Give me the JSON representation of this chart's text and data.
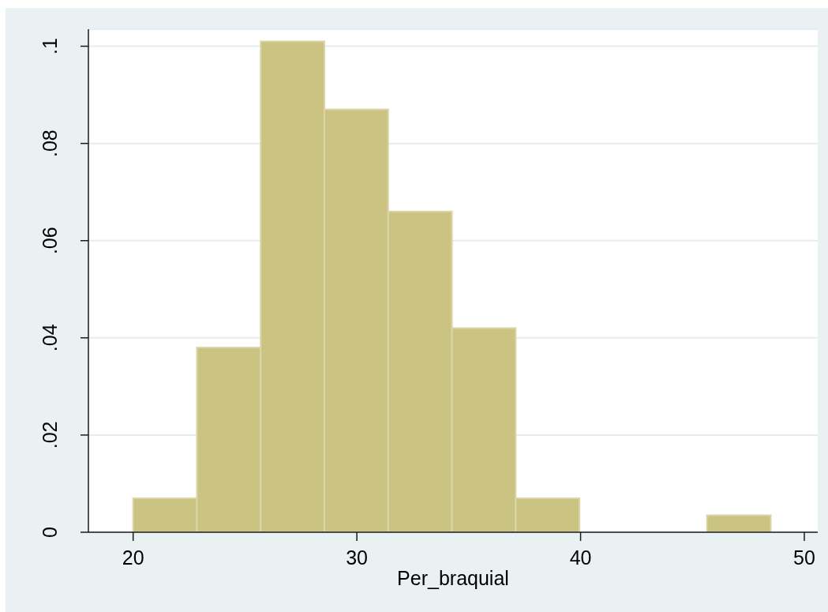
{
  "chart_data": {
    "type": "histogram",
    "xlabel": "Per_braquial",
    "bins": [
      20,
      22.85,
      25.7,
      28.55,
      31.4,
      34.25,
      37.1,
      39.95,
      42.8,
      45.65,
      48.5
    ],
    "values": [
      0.007,
      0.038,
      0.101,
      0.087,
      0.066,
      0.042,
      0.007,
      0,
      0,
      0.0035
    ],
    "color": "#cbc382",
    "xlim": [
      18,
      50.6
    ],
    "xticks": [
      20,
      30,
      40,
      50
    ],
    "ylim": [
      0,
      0.1035
    ],
    "yticks": [
      0,
      {
        "value": 0.02,
        "label": ".02"
      },
      {
        "value": 0.04,
        "label": ".04"
      },
      {
        "value": 0.06,
        "label": ".06"
      },
      {
        "value": 0.08,
        "label": ".08"
      },
      {
        "value": 0.1,
        "label": ".1"
      }
    ],
    "grid": "y"
  }
}
